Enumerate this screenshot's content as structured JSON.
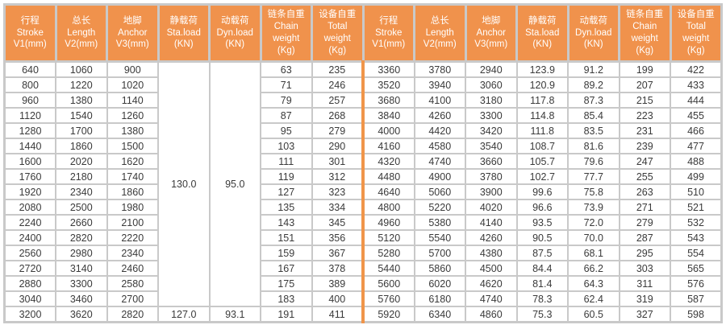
{
  "colors": {
    "header_bg": "#F0924C",
    "header_text": "#FFFFFF",
    "grid": "#C9C9C9",
    "mid_divider": "#F0954A",
    "cell_text": "#3A3A3A",
    "page_bg": "#FFFFFF"
  },
  "table": {
    "header_columns": [
      {
        "key": "stroke",
        "lines": [
          "行程",
          "Stroke",
          "V1(mm)"
        ]
      },
      {
        "key": "length",
        "lines": [
          "总长",
          "Length",
          "V2(mm)"
        ]
      },
      {
        "key": "anchor",
        "lines": [
          "地脚",
          "Anchor",
          "V3(mm)"
        ]
      },
      {
        "key": "sta-load",
        "lines": [
          "静载荷",
          "Sta.load",
          "(KN)"
        ]
      },
      {
        "key": "dyn-load",
        "lines": [
          "动载荷",
          "Dyn.load",
          "(KN)"
        ]
      },
      {
        "key": "chain-weight",
        "lines": [
          "链条自重",
          "Chain",
          "weight",
          "(Kg)"
        ]
      },
      {
        "key": "total-weight",
        "lines": [
          "设备自重",
          "Total",
          "weight",
          "(Kg)"
        ]
      }
    ],
    "left_half": {
      "merged": {
        "sta_load": "130.0",
        "dyn_load": "95.0",
        "rowspan": 16
      },
      "rows": [
        [
          "640",
          "1060",
          "900",
          null,
          null,
          "63",
          "235"
        ],
        [
          "800",
          "1220",
          "1020",
          null,
          null,
          "71",
          "246"
        ],
        [
          "960",
          "1380",
          "1140",
          null,
          null,
          "79",
          "257"
        ],
        [
          "1120",
          "1540",
          "1260",
          null,
          null,
          "87",
          "268"
        ],
        [
          "1280",
          "1700",
          "1380",
          null,
          null,
          "95",
          "279"
        ],
        [
          "1440",
          "1860",
          "1500",
          null,
          null,
          "103",
          "290"
        ],
        [
          "1600",
          "2020",
          "1620",
          null,
          null,
          "111",
          "301"
        ],
        [
          "1760",
          "2180",
          "1740",
          null,
          null,
          "119",
          "312"
        ],
        [
          "1920",
          "2340",
          "1860",
          null,
          null,
          "127",
          "323"
        ],
        [
          "2080",
          "2500",
          "1980",
          null,
          null,
          "135",
          "334"
        ],
        [
          "2240",
          "2660",
          "2100",
          null,
          null,
          "143",
          "345"
        ],
        [
          "2400",
          "2820",
          "2220",
          null,
          null,
          "151",
          "356"
        ],
        [
          "2560",
          "2980",
          "2340",
          null,
          null,
          "159",
          "367"
        ],
        [
          "2720",
          "3140",
          "2460",
          null,
          null,
          "167",
          "378"
        ],
        [
          "2880",
          "3300",
          "2580",
          null,
          null,
          "175",
          "389"
        ],
        [
          "3040",
          "3460",
          "2700",
          null,
          null,
          "183",
          "400"
        ],
        [
          "3200",
          "3620",
          "2820",
          "127.0",
          "93.1",
          "191",
          "411"
        ]
      ]
    },
    "right_half": {
      "rows": [
        [
          "3360",
          "3780",
          "2940",
          "123.9",
          "91.2",
          "199",
          "422"
        ],
        [
          "3520",
          "3940",
          "3060",
          "120.9",
          "89.2",
          "207",
          "433"
        ],
        [
          "3680",
          "4100",
          "3180",
          "117.8",
          "87.3",
          "215",
          "444"
        ],
        [
          "3840",
          "4260",
          "3300",
          "114.8",
          "85.4",
          "223",
          "455"
        ],
        [
          "4000",
          "4420",
          "3420",
          "111.8",
          "83.5",
          "231",
          "466"
        ],
        [
          "4160",
          "4580",
          "3540",
          "108.7",
          "81.6",
          "239",
          "477"
        ],
        [
          "4320",
          "4740",
          "3660",
          "105.7",
          "79.6",
          "247",
          "488"
        ],
        [
          "4480",
          "4900",
          "3780",
          "102.7",
          "77.7",
          "255",
          "499"
        ],
        [
          "4640",
          "5060",
          "3900",
          "99.6",
          "75.8",
          "263",
          "510"
        ],
        [
          "4800",
          "5220",
          "4020",
          "96.6",
          "73.9",
          "271",
          "521"
        ],
        [
          "4960",
          "5380",
          "4140",
          "93.5",
          "72.0",
          "279",
          "532"
        ],
        [
          "5120",
          "5540",
          "4260",
          "90.5",
          "70.0",
          "287",
          "543"
        ],
        [
          "5280",
          "5700",
          "4380",
          "87.5",
          "68.1",
          "295",
          "554"
        ],
        [
          "5440",
          "5860",
          "4500",
          "84.4",
          "66.2",
          "303",
          "565"
        ],
        [
          "5600",
          "6020",
          "4620",
          "81.4",
          "64.3",
          "311",
          "576"
        ],
        [
          "5760",
          "6180",
          "4740",
          "78.3",
          "62.4",
          "319",
          "587"
        ],
        [
          "5920",
          "6340",
          "4860",
          "75.3",
          "60.5",
          "327",
          "598"
        ]
      ]
    }
  }
}
